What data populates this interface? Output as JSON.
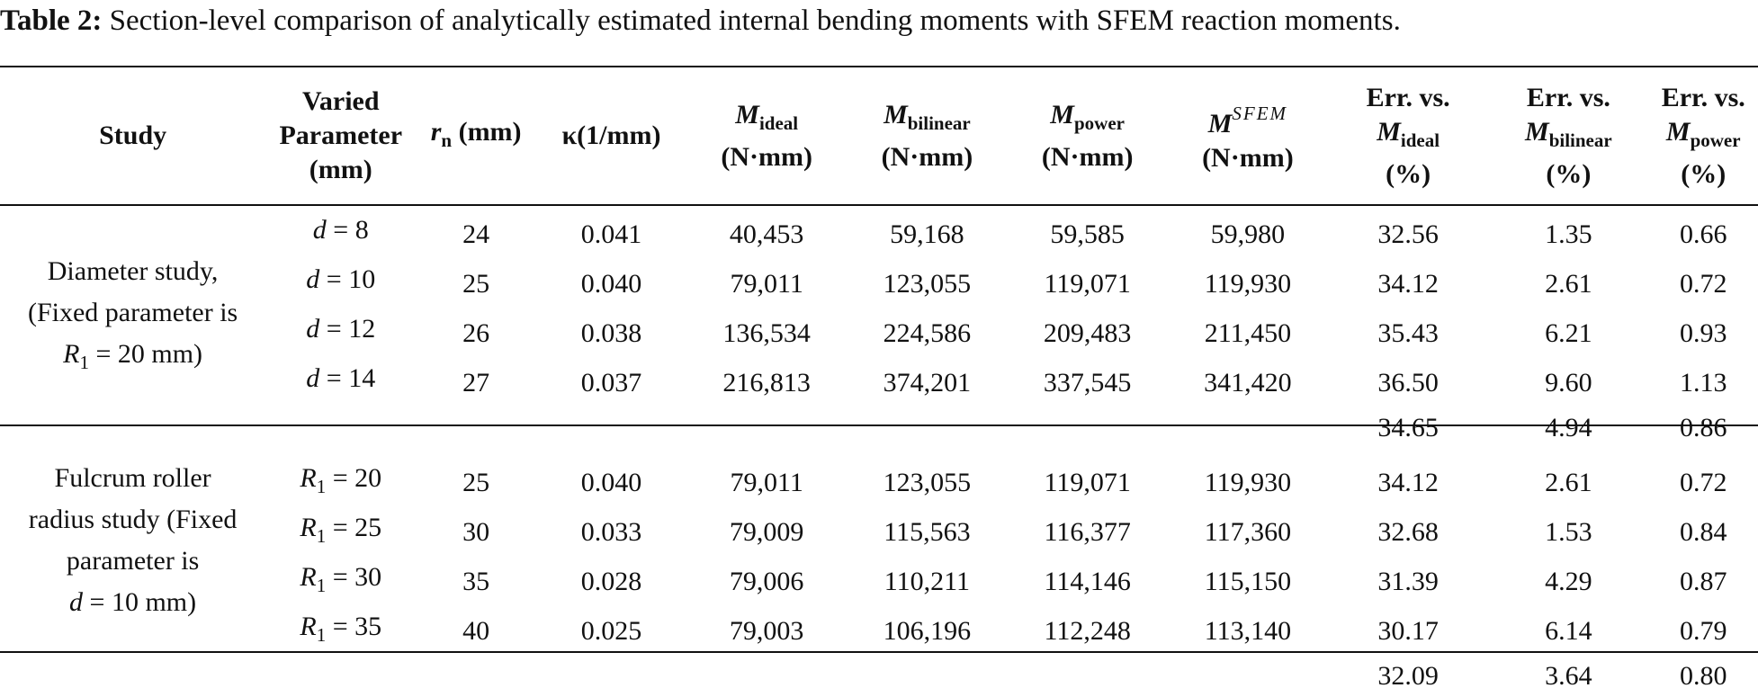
{
  "caption": {
    "label": "Table 2:",
    "text": "Section-level comparison of analytically estimated internal bending moments with SFEM reaction moments."
  },
  "headers": {
    "study": "Study",
    "varied_1": "Varied",
    "varied_2": "Parameter",
    "varied_3": "(mm)",
    "rn_sym": "r",
    "rn_sub": "n",
    "rn_unit": "(mm)",
    "kappa": "κ(1/mm)",
    "m_sym": "M",
    "ideal_sub": "ideal",
    "bilinear_sub": "bilinear",
    "power_sub": "power",
    "sfem_sup": "SFEM",
    "unit_nmm": "(N·mm)",
    "err_1": "Err. vs.",
    "pct": "(%)"
  },
  "groups": [
    {
      "study_lines": [
        "Diameter study,",
        "(Fixed parameter is",
        "R",
        "1",
        " = 20 mm)"
      ],
      "rows": [
        {
          "param_sym": "d",
          "param_sub": "",
          "param_val": " = 8",
          "rn": "24",
          "kappa": "0.041",
          "m_ideal": "40,453",
          "m_bilinear": "59,168",
          "m_power": "59,585",
          "m_sfem": "59,980",
          "err_ideal": "32.56",
          "err_bilinear": "1.35",
          "err_power": "0.66"
        },
        {
          "param_sym": "d",
          "param_sub": "",
          "param_val": " = 10",
          "rn": "25",
          "kappa": "0.040",
          "m_ideal": "79,011",
          "m_bilinear": "123,055",
          "m_power": "119,071",
          "m_sfem": "119,930",
          "err_ideal": "34.12",
          "err_bilinear": "2.61",
          "err_power": "0.72"
        },
        {
          "param_sym": "d",
          "param_sub": "",
          "param_val": " = 12",
          "rn": "26",
          "kappa": "0.038",
          "m_ideal": "136,534",
          "m_bilinear": "224,586",
          "m_power": "209,483",
          "m_sfem": "211,450",
          "err_ideal": "35.43",
          "err_bilinear": "6.21",
          "err_power": "0.93"
        },
        {
          "param_sym": "d",
          "param_sub": "",
          "param_val": " = 14",
          "rn": "27",
          "kappa": "0.037",
          "m_ideal": "216,813",
          "m_bilinear": "374,201",
          "m_power": "337,545",
          "m_sfem": "341,420",
          "err_ideal": "36.50",
          "err_bilinear": "9.60",
          "err_power": "1.13"
        }
      ],
      "avg": {
        "err_ideal": "34.65",
        "err_bilinear": "4.94",
        "err_power": "0.86"
      }
    },
    {
      "study_lines": [
        "Fulcrum roller",
        "radius study (Fixed",
        "parameter is",
        "d",
        " = 10 mm)"
      ],
      "rows": [
        {
          "param_sym": "R",
          "param_sub": "1",
          "param_val": " = 20",
          "rn": "25",
          "kappa": "0.040",
          "m_ideal": "79,011",
          "m_bilinear": "123,055",
          "m_power": "119,071",
          "m_sfem": "119,930",
          "err_ideal": "34.12",
          "err_bilinear": "2.61",
          "err_power": "0.72"
        },
        {
          "param_sym": "R",
          "param_sub": "1",
          "param_val": " = 25",
          "rn": "30",
          "kappa": "0.033",
          "m_ideal": "79,009",
          "m_bilinear": "115,563",
          "m_power": "116,377",
          "m_sfem": "117,360",
          "err_ideal": "32.68",
          "err_bilinear": "1.53",
          "err_power": "0.84"
        },
        {
          "param_sym": "R",
          "param_sub": "1",
          "param_val": " = 30",
          "rn": "35",
          "kappa": "0.028",
          "m_ideal": "79,006",
          "m_bilinear": "110,211",
          "m_power": "114,146",
          "m_sfem": "115,150",
          "err_ideal": "31.39",
          "err_bilinear": "4.29",
          "err_power": "0.87"
        },
        {
          "param_sym": "R",
          "param_sub": "1",
          "param_val": " = 35",
          "rn": "40",
          "kappa": "0.025",
          "m_ideal": "79,003",
          "m_bilinear": "106,196",
          "m_power": "112,248",
          "m_sfem": "113,140",
          "err_ideal": "30.17",
          "err_bilinear": "6.14",
          "err_power": "0.79"
        }
      ],
      "avg": {
        "err_ideal": "32.09",
        "err_bilinear": "3.64",
        "err_power": "0.80"
      }
    }
  ]
}
